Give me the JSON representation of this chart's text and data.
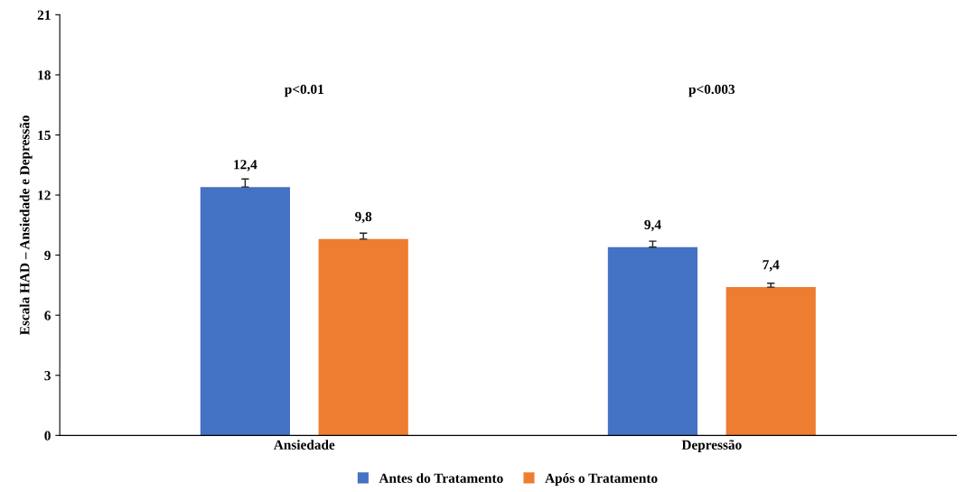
{
  "chart_data": {
    "type": "bar",
    "ylabel": "Escala HAD – Ansiedade e Depressão",
    "categories": [
      "Ansiedade",
      "Depressão"
    ],
    "series": [
      {
        "name": "Antes do Tratamento",
        "color": "#4472c4",
        "values": [
          12.4,
          9.4
        ],
        "value_labels": [
          "12,4",
          "9,4"
        ],
        "errors": [
          [
            12.4,
            12.8
          ],
          [
            9.4,
            9.7
          ]
        ]
      },
      {
        "name": "Após o Tratamento",
        "color": "#ed7d31",
        "values": [
          9.8,
          7.4
        ],
        "value_labels": [
          "9,8",
          "7,4"
        ],
        "errors": [
          [
            9.8,
            10.1
          ],
          [
            7.4,
            7.6
          ]
        ]
      }
    ],
    "annotations": [
      "p<0.01",
      "p<0.003"
    ],
    "ylim": [
      0,
      21
    ],
    "yticks": [
      0,
      3,
      6,
      9,
      12,
      15,
      18,
      21
    ],
    "grid": false,
    "legend": "bottom"
  }
}
